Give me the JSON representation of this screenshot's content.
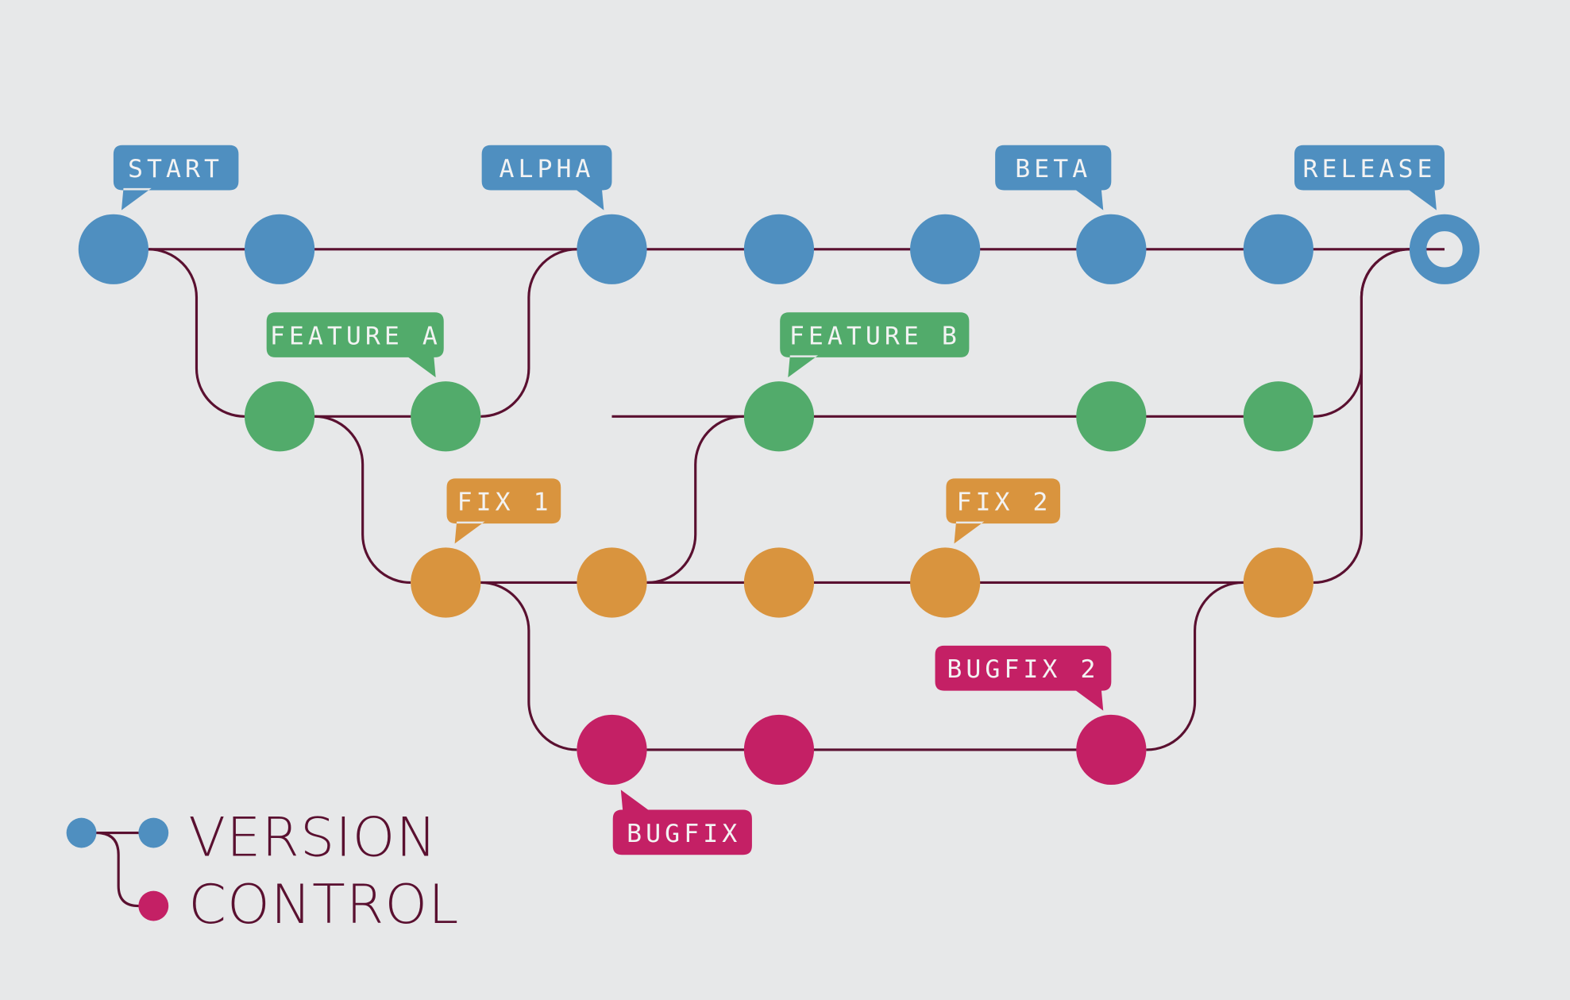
{
  "colors": {
    "background": "#e7e8e9",
    "line": "#5a1030",
    "version": "#4f8fc0",
    "feature": "#52ab6b",
    "fix": "#d9943e",
    "bugfix": "#c42065",
    "label_text": "#f3f3f3"
  },
  "labels": {
    "start": "START",
    "alpha": "ALPHA",
    "beta": "BETA",
    "release": "RELEASE",
    "feature_a": "FEATURE A",
    "feature_b": "FEATURE B",
    "fix_1": "FIX 1",
    "fix_2": "FIX 2",
    "bugfix": "BUGFIX",
    "bugfix_2": "BUGFIX 2"
  },
  "legend": {
    "line1": "VERSION",
    "line2": "CONTROL"
  }
}
